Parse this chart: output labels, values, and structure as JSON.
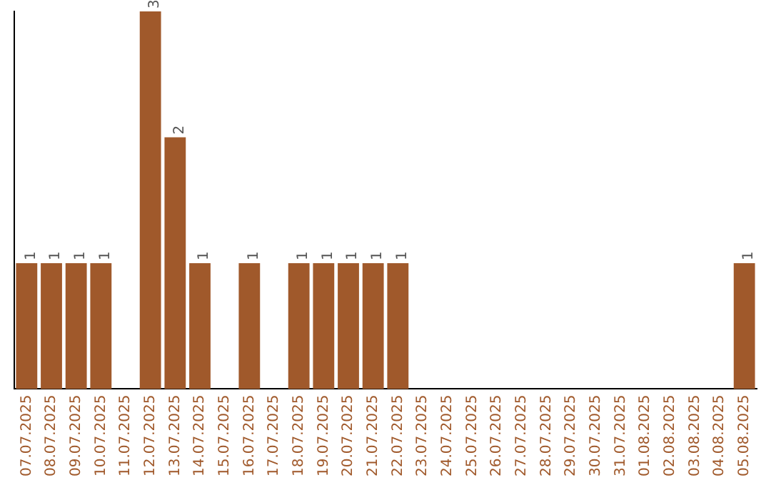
{
  "chart_data": {
    "type": "bar",
    "categories": [
      "07.07.2025",
      "08.07.2025",
      "09.07.2025",
      "10.07.2025",
      "11.07.2025",
      "12.07.2025",
      "13.07.2025",
      "14.07.2025",
      "15.07.2025",
      "16.07.2025",
      "17.07.2025",
      "18.07.2025",
      "19.07.2025",
      "20.07.2025",
      "21.07.2025",
      "22.07.2025",
      "23.07.2025",
      "24.07.2025",
      "25.07.2025",
      "26.07.2025",
      "27.07.2025",
      "28.07.2025",
      "29.07.2025",
      "30.07.2025",
      "31.07.2025",
      "01.08.2025",
      "02.08.2025",
      "03.08.2025",
      "04.08.2025",
      "05.08.2025"
    ],
    "values": [
      1,
      1,
      1,
      1,
      0,
      3,
      2,
      1,
      0,
      1,
      0,
      1,
      1,
      1,
      1,
      1,
      0,
      0,
      0,
      0,
      0,
      0,
      0,
      0,
      0,
      0,
      0,
      0,
      0,
      1
    ],
    "value_labels": [
      "1",
      "1",
      "1",
      "1",
      null,
      "3",
      "2",
      "1",
      null,
      "1",
      null,
      "1",
      "1",
      "1",
      "1",
      "1",
      null,
      null,
      null,
      null,
      null,
      null,
      null,
      null,
      null,
      null,
      null,
      null,
      null,
      "1"
    ],
    "color": "#a0592b",
    "tick_labels": "x",
    "grid": false,
    "legend": false
  }
}
